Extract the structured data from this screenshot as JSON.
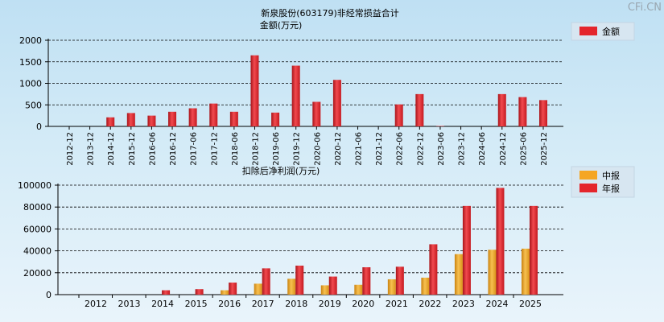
{
  "watermark": "CFi.CN",
  "colors": {
    "red": "#e4252b",
    "orange": "#f5a623"
  },
  "chart_data": [
    {
      "type": "bar",
      "title": "新泉股份(603179)非经常损益合计",
      "subtitle": "金额(万元)",
      "legend": [
        {
          "name": "金额",
          "color": "#e4252b"
        }
      ],
      "legend_position": "top-right",
      "ylim": [
        0,
        2000
      ],
      "yticks": [
        0,
        500,
        1000,
        1500,
        2000
      ],
      "grid": true,
      "categories": [
        "2012-12",
        "2013-12",
        "2014-12",
        "2015-12",
        "2016-06",
        "2016-12",
        "2017-06",
        "2017-12",
        "2018-06",
        "2018-12",
        "2019-06",
        "2019-12",
        "2020-06",
        "2020-12",
        "2021-06",
        "2021-12",
        "2022-06",
        "2022-12",
        "2023-06",
        "2023-12",
        "2024-06",
        "2024-12",
        "2025-06",
        "2025-12"
      ],
      "series": [
        {
          "name": "金额",
          "values": [
            0,
            0,
            210,
            310,
            250,
            340,
            420,
            530,
            340,
            1650,
            320,
            1410,
            570,
            1080,
            0,
            0,
            510,
            750,
            10,
            0,
            0,
            750,
            680,
            610
          ]
        }
      ]
    },
    {
      "type": "bar",
      "title": "扣除后净利润(万元)",
      "legend": [
        {
          "name": "中报",
          "color": "#f5a623"
        },
        {
          "name": "年报",
          "color": "#e4252b"
        }
      ],
      "legend_position": "top-right",
      "ylim": [
        0,
        100000
      ],
      "yticks": [
        0,
        20000,
        40000,
        60000,
        80000,
        100000
      ],
      "grid": true,
      "categories": [
        "2012",
        "2013",
        "2014",
        "2015",
        "2016",
        "2017",
        "2018",
        "2019",
        "2020",
        "2021",
        "2022",
        "2023",
        "2024",
        "2025"
      ],
      "series": [
        {
          "name": "中报",
          "values": [
            0,
            0,
            0,
            0,
            4000,
            10000,
            14500,
            8500,
            9000,
            14000,
            15500,
            37000,
            41000,
            42000
          ]
        },
        {
          "name": "年报",
          "values": [
            0,
            0,
            4000,
            5000,
            11000,
            24000,
            26500,
            16500,
            25000,
            25500,
            46000,
            81000,
            97500,
            81000
          ]
        }
      ]
    }
  ]
}
